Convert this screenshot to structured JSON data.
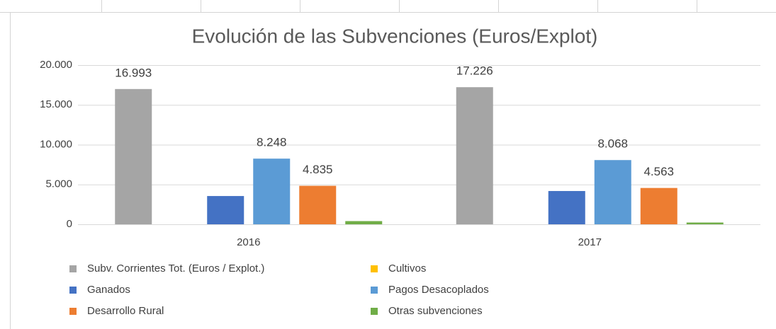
{
  "chart_data": {
    "type": "bar",
    "title": "Evolución de las Subvenciones (Euros/Explot)",
    "categories": [
      "2016",
      "2017"
    ],
    "series": [
      {
        "name": "Subv. Corrientes Tot.  (Euros / Explot.)",
        "color": "#a5a5a5",
        "values": [
          16993,
          17226
        ],
        "value_labels": [
          "16.993",
          "17.226"
        ]
      },
      {
        "name": "Cultivos",
        "color": "#ffc000",
        "values": [
          0,
          0
        ]
      },
      {
        "name": "Ganados",
        "color": "#4472c4",
        "values": [
          3550,
          4180
        ]
      },
      {
        "name": "Pagos Desacoplados",
        "color": "#5b9bd5",
        "values": [
          8248,
          8068
        ],
        "value_labels": [
          "8.248",
          "8.068"
        ]
      },
      {
        "name": "Desarrollo Rural",
        "color": "#ed7d31",
        "values": [
          4835,
          4563
        ],
        "value_labels": [
          "4.835",
          "4.563"
        ]
      },
      {
        "name": "Otras subvenciones",
        "color": "#70ad47",
        "values": [
          400,
          220
        ]
      }
    ],
    "ylim": [
      0,
      20000
    ],
    "yticks": [
      0,
      {
        "value": 5000,
        "label": "5.000"
      },
      {
        "value": 10000,
        "label": "10.000"
      },
      {
        "value": 15000,
        "label": "15.000"
      },
      {
        "value": 20000,
        "label": "20.000"
      }
    ],
    "grid": true,
    "legend": "bottom"
  }
}
